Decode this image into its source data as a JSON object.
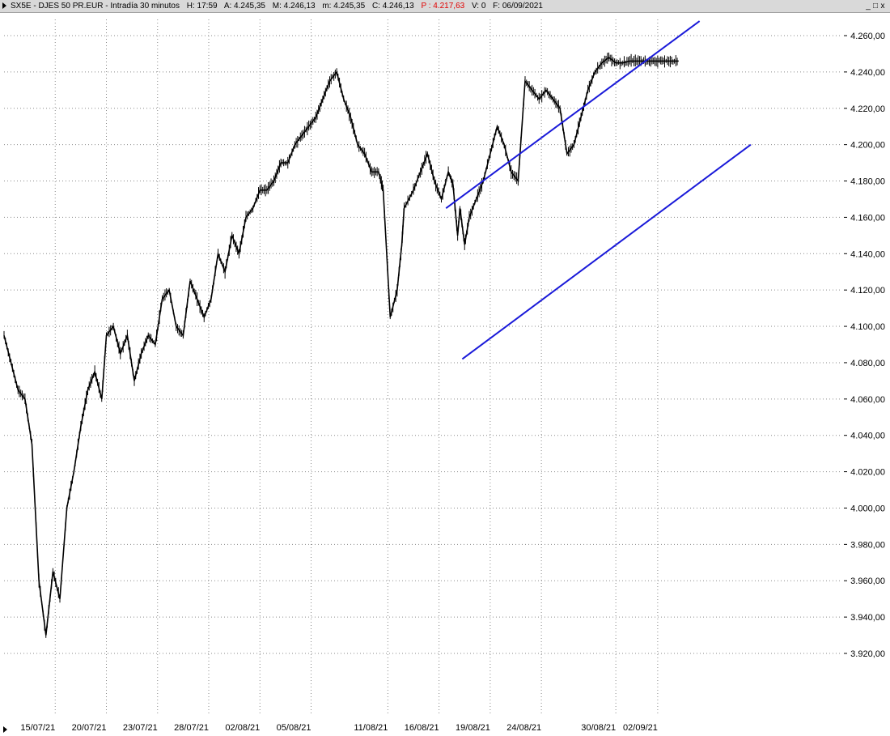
{
  "window": {
    "title": "SX5E - DJES 50 PR.EUR - Intradía 30 minutos",
    "H": "H: 17:59",
    "A": "A: 4.245,35",
    "M": "M: 4.246,13",
    "m": "m: 4.245,35",
    "C": "C: 4.246,13",
    "P": "P : 4.217,63",
    "V": "V: 0",
    "F": "F: 06/09/2021",
    "btn_min": "_",
    "btn_max": "□",
    "btn_close": "x"
  },
  "colors": {
    "price": "#000000",
    "channel": "#1a1ad9",
    "grid": "#8a8a8a",
    "p_value": "#e00000"
  },
  "chart_data": {
    "type": "line",
    "y_axis": {
      "min": 3900,
      "max": 4270,
      "position": "right",
      "ticks": [
        "4.260,00",
        "4.240,00",
        "4.220,00",
        "4.200,00",
        "4.180,00",
        "4.160,00",
        "4.140,00",
        "4.120,00",
        "4.100,00",
        "4.080,00",
        "4.060,00",
        "4.040,00",
        "4.020,00",
        "4.000,00",
        "3.980,00",
        "3.960,00",
        "3.940,00",
        "3.920,00"
      ],
      "tick_values": [
        4260,
        4240,
        4220,
        4200,
        4180,
        4160,
        4140,
        4120,
        4100,
        4080,
        4060,
        4040,
        4020,
        4000,
        3980,
        3960,
        3940,
        3920
      ]
    },
    "x_axis": {
      "start_index": 0,
      "end_index": 360,
      "ticks": [
        "15/07/21",
        "20/07/21",
        "23/07/21",
        "28/07/21",
        "02/08/21",
        "05/08/21",
        "11/08/21",
        "16/08/21",
        "19/08/21",
        "24/08/21",
        "30/08/21",
        "02/09/21"
      ],
      "tick_index": [
        22,
        44,
        66,
        88,
        110,
        132,
        165,
        187,
        209,
        231,
        263,
        281
      ]
    },
    "grid": true,
    "series": [
      {
        "x": [
          0,
          3,
          6,
          9,
          12,
          15,
          18,
          21,
          24,
          27,
          30,
          33,
          36,
          39,
          42,
          44,
          47,
          50,
          53,
          56,
          59,
          62,
          65,
          68,
          71,
          74,
          77,
          80,
          83,
          86,
          89,
          92,
          95,
          98,
          101,
          104,
          107,
          110,
          113,
          116,
          119,
          122,
          125,
          128,
          131,
          134,
          137,
          140,
          143,
          146,
          149,
          152,
          155,
          158,
          161,
          163,
          166,
          169,
          171,
          172,
          176,
          179,
          182,
          185,
          188,
          191,
          193,
          195,
          196,
          198,
          200,
          203,
          206,
          209,
          212,
          215,
          218,
          221,
          224,
          227,
          230,
          233,
          236,
          239,
          242,
          245,
          248,
          251,
          254,
          257,
          260,
          263,
          266,
          269,
          272,
          275,
          278,
          281,
          284,
          287,
          290
        ],
        "y": [
          4095,
          4080,
          4065,
          4060,
          4035,
          3960,
          3930,
          3965,
          3950,
          4000,
          4020,
          4045,
          4065,
          4075,
          4060,
          4095,
          4100,
          4085,
          4095,
          4070,
          4085,
          4095,
          4090,
          4115,
          4120,
          4100,
          4095,
          4125,
          4115,
          4105,
          4115,
          4140,
          4130,
          4150,
          4140,
          4160,
          4165,
          4175,
          4175,
          4180,
          4190,
          4190,
          4200,
          4205,
          4210,
          4215,
          4225,
          4235,
          4240,
          4225,
          4215,
          4200,
          4195,
          4185,
          4185,
          4175,
          4105,
          4120,
          4145,
          4165,
          4175,
          4185,
          4195,
          4180,
          4170,
          4185,
          4178,
          4150,
          4165,
          4145,
          4160,
          4170,
          4180,
          4195,
          4210,
          4200,
          4185,
          4180,
          4235,
          4230,
          4225,
          4230,
          4225,
          4220,
          4195,
          4200,
          4215,
          4230,
          4240,
          4245,
          4248,
          4245,
          4245,
          4246,
          4246,
          4246,
          4246,
          4246,
          4246,
          4246,
          4246
        ]
      }
    ],
    "channel_lines": [
      {
        "name": "upper",
        "x1": 190,
        "y1": 4165,
        "x2": 299,
        "y2": 4268
      },
      {
        "name": "lower",
        "x1": 197,
        "y1": 4082,
        "x2": 321,
        "y2": 4200
      }
    ]
  }
}
